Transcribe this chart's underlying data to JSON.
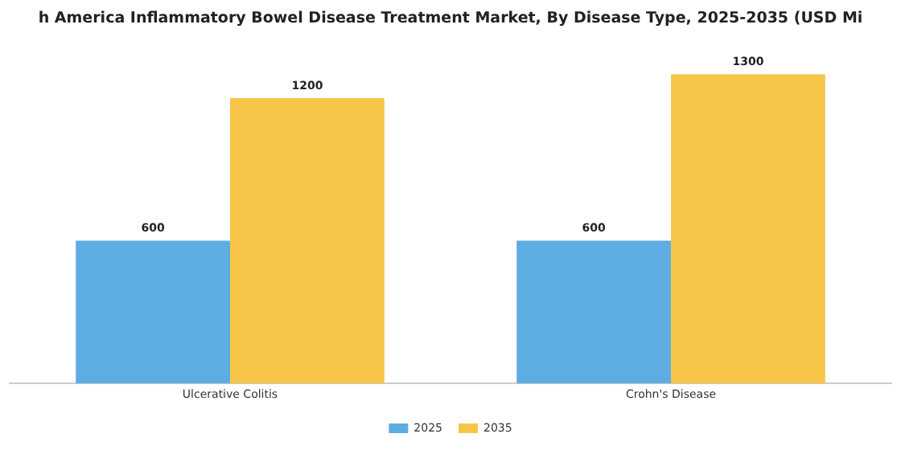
{
  "chart_data": {
    "type": "bar",
    "title": "h America Inflammatory Bowel Disease Treatment Market, By Disease Type, 2025-2035 (USD Mi",
    "categories": [
      "Ulcerative Colitis",
      "Crohn's Disease"
    ],
    "series": [
      {
        "name": "2025",
        "color": "#5dade2",
        "values": [
          600,
          600
        ]
      },
      {
        "name": "2035",
        "color": "#f7c548",
        "values": [
          1200,
          1300
        ]
      }
    ],
    "data_labels": true,
    "legend": "bottom",
    "grid": false
  }
}
